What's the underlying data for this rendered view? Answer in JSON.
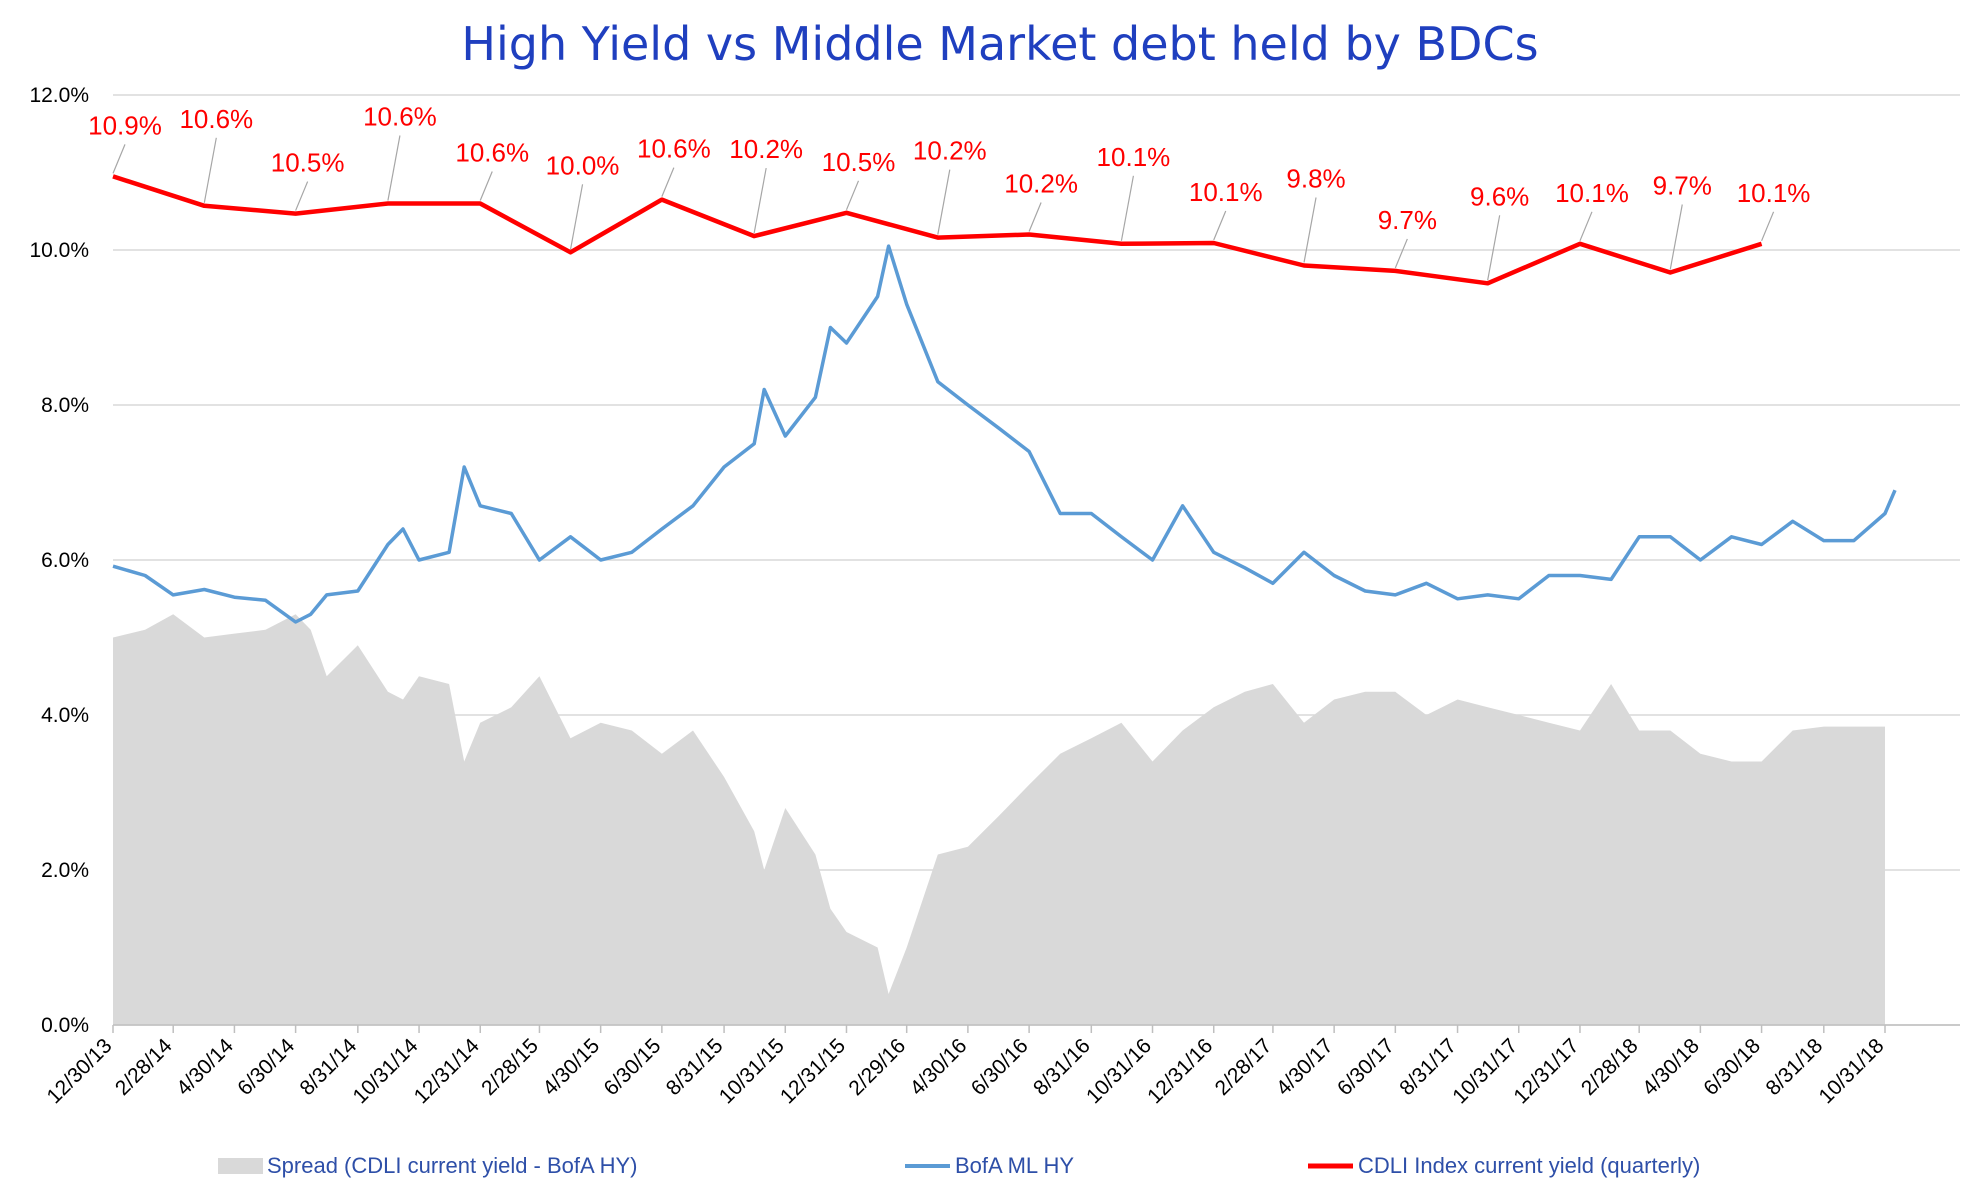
{
  "chart_data": {
    "type": "line",
    "title": "High Yield  vs  Middle Market debt held by BDCs",
    "ylim": [
      0,
      12
    ],
    "y_ticks": [
      "0.0%",
      "2.0%",
      "4.0%",
      "6.0%",
      "8.0%",
      "10.0%",
      "12.0%"
    ],
    "y_tick_values": [
      0,
      2,
      4,
      6,
      8,
      10,
      12
    ],
    "x_ticks": [
      "12/30/13",
      "2/28/14",
      "4/30/14",
      "6/30/14",
      "8/31/14",
      "10/31/14",
      "12/31/14",
      "2/28/15",
      "4/30/15",
      "6/30/15",
      "8/31/15",
      "10/31/15",
      "12/31/15",
      "2/29/16",
      "4/30/16",
      "6/30/16",
      "8/31/16",
      "10/31/16",
      "12/31/16",
      "2/28/17",
      "4/30/17",
      "6/30/17",
      "8/31/17",
      "10/31/17",
      "12/31/17",
      "2/28/18",
      "4/30/18",
      "6/30/18",
      "8/31/18",
      "10/31/18"
    ],
    "grid": true,
    "legend_position": "bottom",
    "colors": {
      "title": "#1f3fbf",
      "spread": "#d9d9d9",
      "bofa": "#5b9bd5",
      "cdli": "#ff0000",
      "label": "#ff0000",
      "legend_text": "#2e4fa8",
      "axis_text": "#000000",
      "grid": "#d9d9d9"
    },
    "series": [
      {
        "name": "CDLI Index current yield (quarterly)",
        "kind": "line",
        "x": [
          "12/30/13",
          "3/31/14",
          "6/30/14",
          "9/30/14",
          "12/31/14",
          "3/31/15",
          "6/30/15",
          "9/30/15",
          "12/31/15",
          "3/31/16",
          "6/30/16",
          "9/30/16",
          "12/31/16",
          "3/31/17",
          "6/30/17",
          "9/30/17",
          "12/31/17",
          "3/31/18",
          "6/30/18"
        ],
        "values": [
          10.95,
          10.57,
          10.47,
          10.6,
          10.6,
          9.97,
          10.65,
          10.18,
          10.48,
          10.16,
          10.2,
          10.08,
          10.09,
          9.8,
          9.73,
          9.57,
          10.08,
          9.71,
          10.08
        ],
        "labels": [
          "10.9%",
          "10.6%",
          "10.5%",
          "10.6%",
          "10.6%",
          "10.0%",
          "10.6%",
          "10.2%",
          "10.5%",
          "10.2%",
          "10.2%",
          "10.1%",
          "10.1%",
          "9.8%",
          "9.7%",
          "9.6%",
          "10.1%",
          "9.7%",
          "10.1%"
        ]
      },
      {
        "name": "BofA ML HY",
        "kind": "line",
        "x": [
          "12/30/13",
          "1/31/14",
          "2/28/14",
          "3/31/14",
          "4/30/14",
          "5/31/14",
          "6/30/14",
          "7/15/14",
          "7/31/14",
          "8/31/14",
          "9/30/14",
          "10/15/14",
          "10/31/14",
          "11/30/14",
          "12/15/14",
          "12/31/14",
          "1/31/15",
          "2/28/15",
          "3/31/15",
          "4/30/15",
          "5/31/15",
          "6/30/15",
          "7/31/15",
          "8/31/15",
          "9/30/15",
          "10/10/15",
          "10/31/15",
          "11/30/15",
          "12/15/15",
          "12/31/15",
          "1/31/16",
          "2/11/16",
          "2/29/16",
          "3/31/16",
          "4/30/16",
          "5/31/16",
          "6/30/16",
          "7/31/16",
          "8/31/16",
          "9/30/16",
          "10/31/16",
          "11/30/16",
          "12/31/16",
          "1/31/17",
          "2/28/17",
          "3/31/17",
          "4/30/17",
          "5/31/17",
          "6/30/17",
          "7/31/17",
          "8/31/17",
          "9/30/17",
          "10/31/17",
          "11/30/17",
          "12/31/17",
          "1/31/18",
          "2/28/18",
          "3/31/18",
          "4/30/18",
          "5/31/18",
          "6/30/18",
          "7/31/18",
          "8/31/18",
          "9/30/18",
          "10/31/18",
          "11/10/18"
        ],
        "values": [
          5.92,
          5.8,
          5.55,
          5.62,
          5.52,
          5.48,
          5.2,
          5.3,
          5.55,
          5.6,
          6.2,
          6.4,
          6.0,
          6.1,
          7.2,
          6.7,
          6.6,
          6.0,
          6.3,
          6.0,
          6.1,
          6.4,
          6.7,
          7.2,
          7.5,
          8.2,
          7.6,
          8.1,
          9.0,
          8.8,
          9.4,
          10.05,
          9.3,
          8.3,
          8.0,
          7.7,
          7.4,
          6.6,
          6.6,
          6.3,
          6.0,
          6.7,
          6.1,
          5.9,
          5.7,
          6.1,
          5.8,
          5.6,
          5.55,
          5.7,
          5.5,
          5.55,
          5.5,
          5.8,
          5.8,
          5.75,
          6.3,
          6.3,
          6.0,
          6.3,
          6.2,
          6.5,
          6.25,
          6.25,
          6.6,
          6.9
        ]
      },
      {
        "name": "Spread (CDLI current yield - BofA HY)",
        "kind": "area",
        "x": [
          "12/30/13",
          "1/31/14",
          "2/28/14",
          "3/31/14",
          "4/30/14",
          "5/31/14",
          "6/30/14",
          "7/15/14",
          "7/31/14",
          "8/31/14",
          "9/30/14",
          "10/15/14",
          "10/31/14",
          "11/30/14",
          "12/15/14",
          "12/31/14",
          "1/31/15",
          "2/28/15",
          "3/31/15",
          "4/30/15",
          "5/31/15",
          "6/30/15",
          "7/31/15",
          "8/31/15",
          "9/30/15",
          "10/10/15",
          "10/31/15",
          "11/30/15",
          "12/15/15",
          "12/31/15",
          "1/31/16",
          "2/11/16",
          "2/29/16",
          "3/31/16",
          "4/30/16",
          "5/31/16",
          "6/30/16",
          "7/31/16",
          "8/31/16",
          "9/30/16",
          "10/31/16",
          "11/30/16",
          "12/31/16",
          "1/31/17",
          "2/28/17",
          "3/31/17",
          "4/30/17",
          "5/31/17",
          "6/30/17",
          "7/31/17",
          "8/31/17",
          "9/30/17",
          "10/31/17",
          "11/30/17",
          "12/31/17",
          "1/31/18",
          "2/28/18",
          "3/31/18",
          "4/30/18",
          "5/31/18",
          "6/30/18",
          "7/31/18",
          "8/31/18",
          "9/30/18",
          "10/31/18"
        ],
        "values": [
          5.0,
          5.1,
          5.3,
          5.0,
          5.05,
          5.1,
          5.3,
          5.1,
          4.5,
          4.9,
          4.3,
          4.2,
          4.5,
          4.4,
          3.4,
          3.9,
          4.1,
          4.5,
          3.7,
          3.9,
          3.8,
          3.5,
          3.8,
          3.2,
          2.5,
          2.0,
          2.8,
          2.2,
          1.5,
          1.2,
          1.0,
          0.4,
          1.0,
          2.2,
          2.3,
          2.7,
          3.1,
          3.5,
          3.7,
          3.9,
          3.4,
          3.8,
          4.1,
          4.3,
          4.4,
          3.9,
          4.2,
          4.3,
          4.3,
          4.0,
          4.2,
          4.1,
          4.0,
          3.9,
          3.8,
          4.4,
          3.8,
          3.8,
          3.5,
          3.4,
          3.4,
          3.8,
          3.85,
          3.85,
          3.85
        ]
      }
    ]
  }
}
